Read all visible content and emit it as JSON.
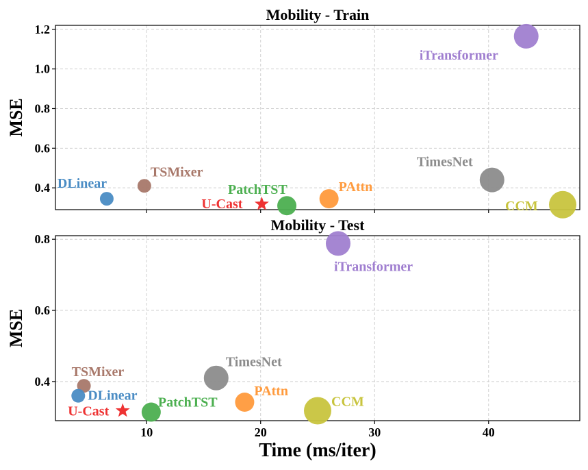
{
  "chart_data": [
    {
      "type": "scatter",
      "title": "Mobility - Train",
      "ylabel": "MSE",
      "xlim": [
        2,
        48
      ],
      "ylim": [
        0.29,
        1.22
      ],
      "yticks": [
        0.4,
        0.6,
        0.8,
        1.0,
        1.2
      ],
      "ytick_labels": [
        "0.4",
        "0.6",
        "0.8",
        "1.0",
        "1.2"
      ],
      "xticks": [
        10,
        20,
        30,
        40
      ],
      "grid": true,
      "points": [
        {
          "name": "DLinear",
          "x": 6.5,
          "y": 0.345,
          "color": "#4a8cc4",
          "size": "small",
          "marker": "circle"
        },
        {
          "name": "TSMixer",
          "x": 9.8,
          "y": 0.41,
          "color": "#a8786a",
          "size": "small",
          "marker": "circle"
        },
        {
          "name": "U-Cast",
          "x": 20.1,
          "y": 0.318,
          "color": "#ee3333",
          "size": "small",
          "marker": "star"
        },
        {
          "name": "PatchTST",
          "x": 22.3,
          "y": 0.31,
          "color": "#4caf50",
          "size": "medium",
          "marker": "circle"
        },
        {
          "name": "PAttn",
          "x": 26.0,
          "y": 0.345,
          "color": "#ff9a3c",
          "size": "medium",
          "marker": "circle"
        },
        {
          "name": "TimesNet",
          "x": 40.3,
          "y": 0.44,
          "color": "#8c8c8c",
          "size": "large",
          "marker": "circle"
        },
        {
          "name": "CCM",
          "x": 46.5,
          "y": 0.315,
          "color": "#c8c43e",
          "size": "xlarge",
          "marker": "circle"
        },
        {
          "name": "iTransformer",
          "x": 43.3,
          "y": 1.165,
          "color": "#a07fd0",
          "size": "large",
          "marker": "circle"
        }
      ]
    },
    {
      "type": "scatter",
      "title": "Mobility - Test",
      "ylabel": "MSE",
      "xlabel": "Time (ms/iter)",
      "xlim": [
        2,
        48
      ],
      "ylim": [
        0.29,
        0.81
      ],
      "yticks": [
        0.4,
        0.6,
        0.8
      ],
      "ytick_labels": [
        "0.4",
        "0.6",
        "0.8"
      ],
      "xticks": [
        10,
        20,
        30,
        40
      ],
      "xtick_labels": [
        "10",
        "20",
        "30",
        "40"
      ],
      "grid": true,
      "points": [
        {
          "name": "TSMixer",
          "x": 4.5,
          "y": 0.388,
          "color": "#a8786a",
          "size": "small",
          "marker": "circle"
        },
        {
          "name": "DLinear",
          "x": 4.0,
          "y": 0.36,
          "color": "#4a8cc4",
          "size": "small",
          "marker": "circle"
        },
        {
          "name": "U-Cast",
          "x": 7.9,
          "y": 0.318,
          "color": "#ee3333",
          "size": "small",
          "marker": "star"
        },
        {
          "name": "PatchTST",
          "x": 10.4,
          "y": 0.314,
          "color": "#4caf50",
          "size": "medium",
          "marker": "circle"
        },
        {
          "name": "TimesNet",
          "x": 16.1,
          "y": 0.41,
          "color": "#8c8c8c",
          "size": "large",
          "marker": "circle"
        },
        {
          "name": "PAttn",
          "x": 18.6,
          "y": 0.342,
          "color": "#ff9a3c",
          "size": "medium",
          "marker": "circle"
        },
        {
          "name": "CCM",
          "x": 25.0,
          "y": 0.318,
          "color": "#c8c43e",
          "size": "xlarge",
          "marker": "circle"
        },
        {
          "name": "iTransformer",
          "x": 26.8,
          "y": 0.788,
          "color": "#a07fd0",
          "size": "large",
          "marker": "circle"
        }
      ]
    }
  ]
}
